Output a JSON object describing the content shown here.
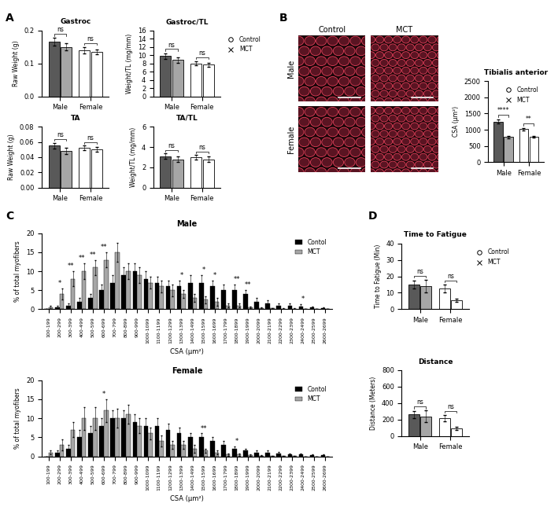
{
  "figure": {
    "panel_labels": [
      "A",
      "B",
      "C",
      "D"
    ],
    "micrographs": {
      "columns": [
        "Control",
        "MCT"
      ],
      "rows": [
        "Male",
        "Female"
      ]
    }
  },
  "chart_data": [
    {
      "type": "bar",
      "title": "Gastroc",
      "y_label": "Raw Weight (g)",
      "categories": [
        "Male",
        "Female"
      ],
      "series": [
        {
          "name": "Control",
          "marker": "circle",
          "colors": [
            "#595959",
            "#ffffff"
          ],
          "values": [
            0.165,
            0.14
          ],
          "errors": [
            0.012,
            0.01
          ]
        },
        {
          "name": "MCT",
          "marker": "x",
          "colors": [
            "#a6a6a6",
            "#ffffff"
          ],
          "values": [
            0.15,
            0.135
          ],
          "errors": [
            0.01,
            0.008
          ]
        }
      ],
      "ylim": [
        0,
        0.2
      ],
      "yticks": [
        {
          "value": 0,
          "label": "0.0"
        },
        {
          "value": 0.1,
          "label": "0.1"
        },
        {
          "value": 0.2,
          "label": "0.2"
        }
      ],
      "annotations": [
        {
          "category": "Male",
          "text": "ns"
        },
        {
          "category": "Female",
          "text": "ns"
        }
      ]
    },
    {
      "type": "bar",
      "title": "Gastroc/TL",
      "y_label": "Weight/TL (mg/mm)",
      "categories": [
        "Male",
        "Female"
      ],
      "series": [
        {
          "name": "Control",
          "marker": "circle",
          "colors": [
            "#595959",
            "#ffffff"
          ],
          "values": [
            9.8,
            8.0
          ],
          "errors": [
            0.7,
            0.5
          ]
        },
        {
          "name": "MCT",
          "marker": "x",
          "colors": [
            "#a6a6a6",
            "#ffffff"
          ],
          "values": [
            8.8,
            7.7
          ],
          "errors": [
            0.7,
            0.5
          ]
        }
      ],
      "ylim": [
        0,
        16
      ],
      "yticks": [
        0,
        2,
        4,
        6,
        8,
        10,
        12,
        14,
        16
      ],
      "legend": "upper left",
      "annotations": [
        {
          "category": "Male",
          "text": "ns"
        },
        {
          "category": "Female",
          "text": "ns"
        }
      ]
    },
    {
      "type": "bar",
      "title": "TA",
      "y_label": "Raw Weight (g)",
      "categories": [
        "Male",
        "Female"
      ],
      "series": [
        {
          "name": "Control",
          "marker": "circle",
          "colors": [
            "#595959",
            "#ffffff"
          ],
          "values": [
            0.055,
            0.052
          ],
          "errors": [
            0.004,
            0.003
          ]
        },
        {
          "name": "MCT",
          "marker": "x",
          "colors": [
            "#a6a6a6",
            "#ffffff"
          ],
          "values": [
            0.048,
            0.05
          ],
          "errors": [
            0.004,
            0.003
          ]
        }
      ],
      "ylim": [
        0,
        0.08
      ],
      "yticks": [
        {
          "value": 0,
          "label": "0.00"
        },
        {
          "value": 0.02,
          "label": "0.02"
        },
        {
          "value": 0.04,
          "label": "0.04"
        },
        {
          "value": 0.06,
          "label": "0.06"
        },
        {
          "value": 0.08,
          "label": "0.08"
        }
      ],
      "annotations": [
        {
          "category": "Male",
          "text": "ns"
        },
        {
          "category": "Female",
          "text": "ns"
        }
      ]
    },
    {
      "type": "bar",
      "title": "TA/TL",
      "y_label": "Weight/TL (mg/mm)",
      "categories": [
        "Male",
        "Female"
      ],
      "series": [
        {
          "name": "Control",
          "marker": "circle",
          "colors": [
            "#595959",
            "#ffffff"
          ],
          "values": [
            3.1,
            3.0
          ],
          "errors": [
            0.25,
            0.2
          ]
        },
        {
          "name": "MCT",
          "marker": "x",
          "colors": [
            "#a6a6a6",
            "#ffffff"
          ],
          "values": [
            2.8,
            2.8
          ],
          "errors": [
            0.25,
            0.3
          ]
        }
      ],
      "ylim": [
        0,
        6
      ],
      "yticks": [
        0,
        2,
        4,
        6
      ],
      "annotations": [
        {
          "category": "Male",
          "text": "ns"
        },
        {
          "category": "Female",
          "text": "ns"
        }
      ]
    },
    {
      "type": "bar",
      "title": "Tibialis anterior",
      "y_label": "CSA (μm²)",
      "categories": [
        "Male",
        "Female"
      ],
      "series": [
        {
          "name": "Control",
          "marker": "circle",
          "colors": [
            "#595959",
            "#ffffff"
          ],
          "values": [
            1250,
            1020
          ],
          "errors": [
            60,
            30
          ]
        },
        {
          "name": "MCT",
          "marker": "x",
          "colors": [
            "#a6a6a6",
            "#ffffff"
          ],
          "values": [
            780,
            790
          ],
          "errors": [
            40,
            30
          ]
        }
      ],
      "ylim": [
        0,
        2500
      ],
      "yticks": [
        0,
        500,
        1000,
        1500,
        2000,
        2500
      ],
      "legend": "upper right",
      "annotations": [
        {
          "category": "Male",
          "text": "****"
        },
        {
          "category": "Female",
          "text": "**"
        }
      ]
    },
    {
      "type": "bar",
      "title": "Male",
      "x_label": "CSA (μm²)",
      "y_label": "% of total myofibers",
      "categories": [
        "100-199",
        "200-299",
        "300-399",
        "400-499",
        "500-599",
        "600-699",
        "700-799",
        "800-899",
        "900-999",
        "1000-1099",
        "1100-1199",
        "1200-1299",
        "1300-1399",
        "1400-1499",
        "1500-1599",
        "1600-1699",
        "1700-1799",
        "1800-1899",
        "1900-1999",
        "2000-2099",
        "2100-2199",
        "2200-2299",
        "2300-2399",
        "2400-2499",
        "2500-2599",
        "2600-2699"
      ],
      "series": [
        {
          "name": "Contol",
          "color": "#000000",
          "values": [
            0,
            0.5,
            1,
            2,
            3,
            5,
            7,
            9,
            10,
            8,
            7,
            6,
            6,
            7,
            7,
            6,
            5,
            5,
            4,
            2,
            1.5,
            1,
            1,
            0.8,
            0.5,
            0.3
          ],
          "errors": [
            0,
            0.5,
            0.5,
            1,
            1,
            1.5,
            2,
            2,
            2,
            2,
            1.5,
            1.5,
            1.5,
            2,
            2,
            1.5,
            1.5,
            1.5,
            1,
            1,
            0.8,
            0.5,
            0.5,
            0.5,
            0.3,
            0.3
          ]
        },
        {
          "name": "MCT",
          "color": "#a6a6a6",
          "values": [
            0.5,
            4,
            8,
            10,
            11,
            13,
            15,
            10,
            9,
            7,
            6,
            5,
            4,
            3,
            2.5,
            2,
            1,
            1,
            0.5,
            0.3,
            0.2,
            0.1,
            0.1,
            0,
            0,
            0
          ],
          "errors": [
            0.5,
            1.5,
            2,
            2,
            2,
            2,
            2.5,
            2,
            2,
            1.5,
            1.5,
            1.5,
            1,
            1,
            1,
            1,
            0.5,
            0.5,
            0.3,
            0.3,
            0.2,
            0.1,
            0.1,
            0,
            0,
            0
          ]
        }
      ],
      "ylim": [
        0,
        20
      ],
      "yticks": [
        0,
        5,
        10,
        15,
        20
      ],
      "legend": "upper right",
      "annotations": [
        {
          "category": "200-299",
          "text": "*"
        },
        {
          "category": "300-399",
          "text": "**"
        },
        {
          "category": "400-499",
          "text": "**"
        },
        {
          "category": "500-599",
          "text": "**"
        },
        {
          "category": "600-699",
          "text": "**"
        },
        {
          "category": "1300-1399",
          "text": "*"
        },
        {
          "category": "1500-1599",
          "text": "*"
        },
        {
          "category": "1600-1699",
          "text": "*"
        },
        {
          "category": "1800-1899",
          "text": "**"
        },
        {
          "category": "1900-1999",
          "text": "**"
        },
        {
          "category": "2400-2499",
          "text": "*"
        }
      ]
    },
    {
      "type": "bar",
      "title": "Female",
      "x_label": "CSA (μm²)",
      "y_label": "% of total myofibers",
      "categories": [
        "100-199",
        "200-299",
        "300-399",
        "400-499",
        "500-599",
        "600-699",
        "700-799",
        "800-899",
        "900-999",
        "1000-1099",
        "1100-1199",
        "1200-1299",
        "1300-1399",
        "1400-1499",
        "1500-1599",
        "1600-1699",
        "1700-1799",
        "1800-1899",
        "1900-1999",
        "2000-2099",
        "2100-2199",
        "2200-2299",
        "2300-2399",
        "2400-2499",
        "2500-2599",
        "2600-2699"
      ],
      "series": [
        {
          "name": "Contol",
          "color": "#000000",
          "values": [
            0,
            1,
            2,
            5,
            6,
            8,
            10,
            10,
            9,
            8,
            8,
            7,
            6,
            5,
            5,
            4,
            3,
            2,
            1.5,
            1,
            1,
            0.8,
            0.5,
            0.5,
            0.3,
            0.3
          ],
          "errors": [
            0,
            0.5,
            1,
            2,
            2,
            2,
            2,
            2,
            2,
            2,
            2,
            1.5,
            1.5,
            1,
            1,
            1,
            1,
            0.5,
            0.5,
            0.5,
            0.5,
            0.3,
            0.3,
            0.3,
            0.2,
            0.2
          ]
        },
        {
          "name": "MCT",
          "color": "#a6a6a6",
          "values": [
            1,
            3,
            7,
            10,
            10,
            12,
            10,
            11,
            8,
            6,
            4,
            3,
            3,
            2,
            1.5,
            1,
            0.5,
            0.5,
            0.3,
            0.2,
            0.1,
            0.1,
            0.1,
            0,
            0,
            0
          ],
          "errors": [
            0.5,
            1.5,
            2,
            3,
            3,
            3,
            2.5,
            2.5,
            2,
            1.5,
            1.5,
            1,
            1,
            1,
            0.5,
            0.5,
            0.3,
            0.3,
            0.2,
            0.1,
            0.1,
            0.1,
            0.1,
            0,
            0,
            0
          ]
        }
      ],
      "ylim": [
        0,
        20
      ],
      "yticks": [
        0,
        5,
        10,
        15,
        20
      ],
      "legend": "upper right",
      "annotations": [
        {
          "category": "600-699",
          "text": "*"
        },
        {
          "category": "1500-1599",
          "text": "**"
        },
        {
          "category": "1800-1899",
          "text": "*"
        }
      ]
    },
    {
      "type": "bar",
      "title": "Time to Fatigue",
      "y_label": "Time to Fatigue (Min)",
      "categories": [
        "Male",
        "Female"
      ],
      "series": [
        {
          "name": "Control",
          "marker": "circle",
          "colors": [
            "#595959",
            "#ffffff"
          ],
          "values": [
            15,
            12.5
          ],
          "errors": [
            2.5,
            2.5
          ]
        },
        {
          "name": "MCT",
          "marker": "x",
          "colors": [
            "#a6a6a6",
            "#ffffff"
          ],
          "values": [
            14,
            5.5
          ],
          "errors": [
            4,
            1
          ]
        }
      ],
      "ylim": [
        0,
        40
      ],
      "yticks": [
        0,
        10,
        20,
        30,
        40
      ],
      "legend": "upper left",
      "annotations": [
        {
          "category": "Male",
          "text": "ns"
        },
        {
          "category": "Female",
          "text": "ns"
        }
      ]
    },
    {
      "type": "bar",
      "title": "Distance",
      "y_label": "Distance (Meters)",
      "categories": [
        "Male",
        "Female"
      ],
      "series": [
        {
          "name": "Control",
          "marker": "circle",
          "colors": [
            "#595959",
            "#ffffff"
          ],
          "values": [
            260,
            215
          ],
          "errors": [
            40,
            40
          ]
        },
        {
          "name": "MCT",
          "marker": "x",
          "colors": [
            "#a6a6a6",
            "#ffffff"
          ],
          "values": [
            240,
            95
          ],
          "errors": [
            70,
            20
          ]
        }
      ],
      "ylim": [
        0,
        800
      ],
      "yticks": [
        0,
        200,
        400,
        600,
        800
      ],
      "annotations": [
        {
          "category": "Male",
          "text": "ns"
        },
        {
          "category": "Female",
          "text": "ns"
        }
      ]
    }
  ]
}
